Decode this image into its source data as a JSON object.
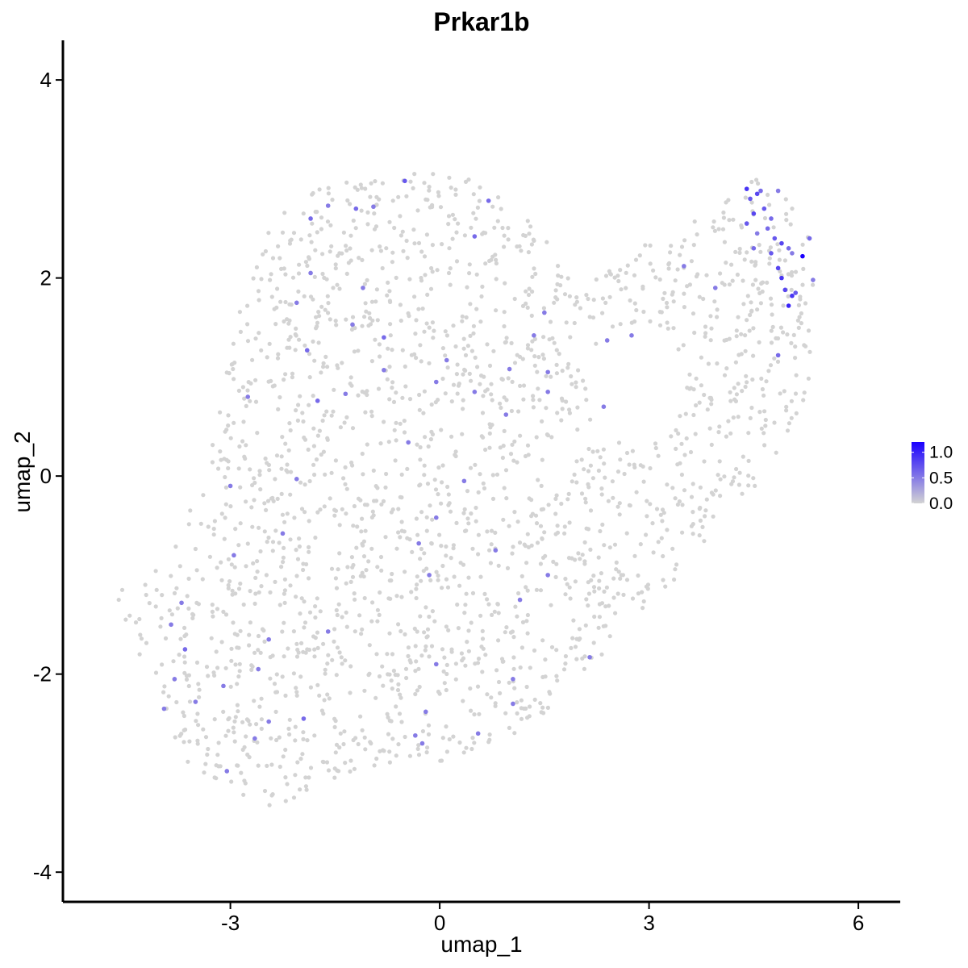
{
  "chart_data": {
    "type": "scatter",
    "title": "Prkar1b",
    "xlabel": "umap_1",
    "ylabel": "umap_2",
    "xlim": [
      -5.4,
      6.6
    ],
    "ylim": [
      -4.3,
      4.4
    ],
    "x_ticks": [
      -3,
      0,
      3,
      6
    ],
    "y_ticks": [
      -4,
      -2,
      0,
      2,
      4
    ],
    "x_tick_labels": [
      "-3",
      "0",
      "3",
      "6"
    ],
    "y_tick_labels": [
      "-4",
      "-2",
      "0",
      "2",
      "4"
    ],
    "grid": false,
    "legend": {
      "placement": "right",
      "type": "colorbar",
      "min": 0.0,
      "max": 1.2,
      "ticks": [
        0.0,
        0.5,
        1.0
      ],
      "tick_labels": [
        "0.0",
        "0.5",
        "1.0"
      ],
      "low_color": "#d3d3d3",
      "high_color": "#1a00ff"
    },
    "background_color": "#d3d3d3",
    "expressing_points": [
      {
        "x": 4.4,
        "y": 2.9,
        "v": 0.9
      },
      {
        "x": 4.45,
        "y": 2.8,
        "v": 0.7
      },
      {
        "x": 4.55,
        "y": 2.85,
        "v": 0.8
      },
      {
        "x": 4.6,
        "y": 2.88,
        "v": 0.6
      },
      {
        "x": 4.65,
        "y": 2.7,
        "v": 0.7
      },
      {
        "x": 4.75,
        "y": 2.6,
        "v": 0.6
      },
      {
        "x": 4.85,
        "y": 2.88,
        "v": 0.5
      },
      {
        "x": 4.5,
        "y": 2.65,
        "v": 0.8
      },
      {
        "x": 4.4,
        "y": 2.55,
        "v": 0.7
      },
      {
        "x": 4.7,
        "y": 2.5,
        "v": 0.6
      },
      {
        "x": 4.55,
        "y": 2.45,
        "v": 0.5
      },
      {
        "x": 4.8,
        "y": 2.4,
        "v": 0.7
      },
      {
        "x": 4.9,
        "y": 2.35,
        "v": 0.8
      },
      {
        "x": 5.0,
        "y": 2.3,
        "v": 0.6
      },
      {
        "x": 5.05,
        "y": 2.25,
        "v": 0.5
      },
      {
        "x": 5.2,
        "y": 2.22,
        "v": 1.2
      },
      {
        "x": 5.3,
        "y": 2.4,
        "v": 0.6
      },
      {
        "x": 4.75,
        "y": 2.25,
        "v": 0.7
      },
      {
        "x": 4.85,
        "y": 2.1,
        "v": 0.8
      },
      {
        "x": 4.9,
        "y": 2.0,
        "v": 0.9
      },
      {
        "x": 4.95,
        "y": 1.88,
        "v": 0.8
      },
      {
        "x": 5.05,
        "y": 1.82,
        "v": 0.9
      },
      {
        "x": 5.1,
        "y": 1.85,
        "v": 0.7
      },
      {
        "x": 5.0,
        "y": 1.72,
        "v": 1.0
      },
      {
        "x": 5.35,
        "y": 1.98,
        "v": 0.5
      },
      {
        "x": 4.5,
        "y": 2.3,
        "v": 0.6
      },
      {
        "x": 4.85,
        "y": 1.22,
        "v": 0.6
      },
      {
        "x": 3.5,
        "y": 2.12,
        "v": 0.5
      },
      {
        "x": 3.95,
        "y": 1.9,
        "v": 0.5
      },
      {
        "x": -0.5,
        "y": 2.98,
        "v": 0.7
      },
      {
        "x": 0.7,
        "y": 2.78,
        "v": 0.6
      },
      {
        "x": -1.6,
        "y": 2.73,
        "v": 0.5
      },
      {
        "x": -1.2,
        "y": 2.7,
        "v": 0.6
      },
      {
        "x": -0.95,
        "y": 2.72,
        "v": 0.5
      },
      {
        "x": -1.85,
        "y": 2.6,
        "v": 0.6
      },
      {
        "x": 0.5,
        "y": 2.42,
        "v": 0.6
      },
      {
        "x": -1.85,
        "y": 2.05,
        "v": 0.5
      },
      {
        "x": -1.1,
        "y": 1.9,
        "v": 0.5
      },
      {
        "x": -2.05,
        "y": 1.75,
        "v": 0.5
      },
      {
        "x": 1.5,
        "y": 1.65,
        "v": 0.5
      },
      {
        "x": -1.25,
        "y": 1.53,
        "v": 0.5
      },
      {
        "x": 1.35,
        "y": 1.42,
        "v": 0.5
      },
      {
        "x": 2.75,
        "y": 1.42,
        "v": 0.5
      },
      {
        "x": -0.8,
        "y": 1.4,
        "v": 0.6
      },
      {
        "x": 2.4,
        "y": 1.37,
        "v": 0.5
      },
      {
        "x": -1.9,
        "y": 1.27,
        "v": 0.6
      },
      {
        "x": 0.1,
        "y": 1.17,
        "v": 0.5
      },
      {
        "x": -0.8,
        "y": 1.07,
        "v": 0.5
      },
      {
        "x": 1.0,
        "y": 1.08,
        "v": 0.5
      },
      {
        "x": 1.55,
        "y": 1.05,
        "v": 0.5
      },
      {
        "x": -0.05,
        "y": 0.95,
        "v": 0.5
      },
      {
        "x": 0.5,
        "y": 0.85,
        "v": 0.5
      },
      {
        "x": 1.55,
        "y": 0.85,
        "v": 0.5
      },
      {
        "x": -1.35,
        "y": 0.83,
        "v": 0.5
      },
      {
        "x": -2.75,
        "y": 0.8,
        "v": 0.5
      },
      {
        "x": -1.75,
        "y": 0.76,
        "v": 0.6
      },
      {
        "x": 2.35,
        "y": 0.7,
        "v": 0.5
      },
      {
        "x": 0.95,
        "y": 0.62,
        "v": 0.5
      },
      {
        "x": -0.45,
        "y": 0.34,
        "v": 0.5
      },
      {
        "x": -2.05,
        "y": -0.03,
        "v": 0.5
      },
      {
        "x": 0.35,
        "y": -0.05,
        "v": 0.5
      },
      {
        "x": -3.0,
        "y": -0.1,
        "v": 0.5
      },
      {
        "x": -0.05,
        "y": -0.42,
        "v": 0.5
      },
      {
        "x": -2.25,
        "y": -0.58,
        "v": 0.5
      },
      {
        "x": -0.3,
        "y": -0.68,
        "v": 0.5
      },
      {
        "x": 0.8,
        "y": -0.75,
        "v": 0.5
      },
      {
        "x": -2.95,
        "y": -0.8,
        "v": 0.5
      },
      {
        "x": -0.15,
        "y": -1.0,
        "v": 0.5
      },
      {
        "x": 1.55,
        "y": -1.0,
        "v": 0.5
      },
      {
        "x": 1.15,
        "y": -1.25,
        "v": 0.5
      },
      {
        "x": -3.7,
        "y": -1.28,
        "v": 0.5
      },
      {
        "x": -3.85,
        "y": -1.5,
        "v": 0.5
      },
      {
        "x": -1.6,
        "y": -1.57,
        "v": 0.5
      },
      {
        "x": -2.45,
        "y": -1.65,
        "v": 0.5
      },
      {
        "x": -3.65,
        "y": -1.75,
        "v": 0.6
      },
      {
        "x": 2.15,
        "y": -1.83,
        "v": 0.5
      },
      {
        "x": -0.05,
        "y": -1.9,
        "v": 0.5
      },
      {
        "x": -2.6,
        "y": -1.95,
        "v": 0.5
      },
      {
        "x": -3.8,
        "y": -2.05,
        "v": 0.5
      },
      {
        "x": 1.05,
        "y": -2.05,
        "v": 0.5
      },
      {
        "x": -3.1,
        "y": -2.12,
        "v": 0.5
      },
      {
        "x": -3.5,
        "y": -2.28,
        "v": 0.5
      },
      {
        "x": 1.05,
        "y": -2.3,
        "v": 0.5
      },
      {
        "x": -3.95,
        "y": -2.35,
        "v": 0.5
      },
      {
        "x": -0.2,
        "y": -2.38,
        "v": 0.5
      },
      {
        "x": -1.95,
        "y": -2.45,
        "v": 0.6
      },
      {
        "x": -2.45,
        "y": -2.48,
        "v": 0.5
      },
      {
        "x": -0.35,
        "y": -2.62,
        "v": 0.5
      },
      {
        "x": 0.55,
        "y": -2.6,
        "v": 0.5
      },
      {
        "x": -2.65,
        "y": -2.65,
        "v": 0.5
      },
      {
        "x": -0.25,
        "y": -2.7,
        "v": 0.5
      },
      {
        "x": -3.05,
        "y": -2.98,
        "v": 0.5
      }
    ]
  }
}
